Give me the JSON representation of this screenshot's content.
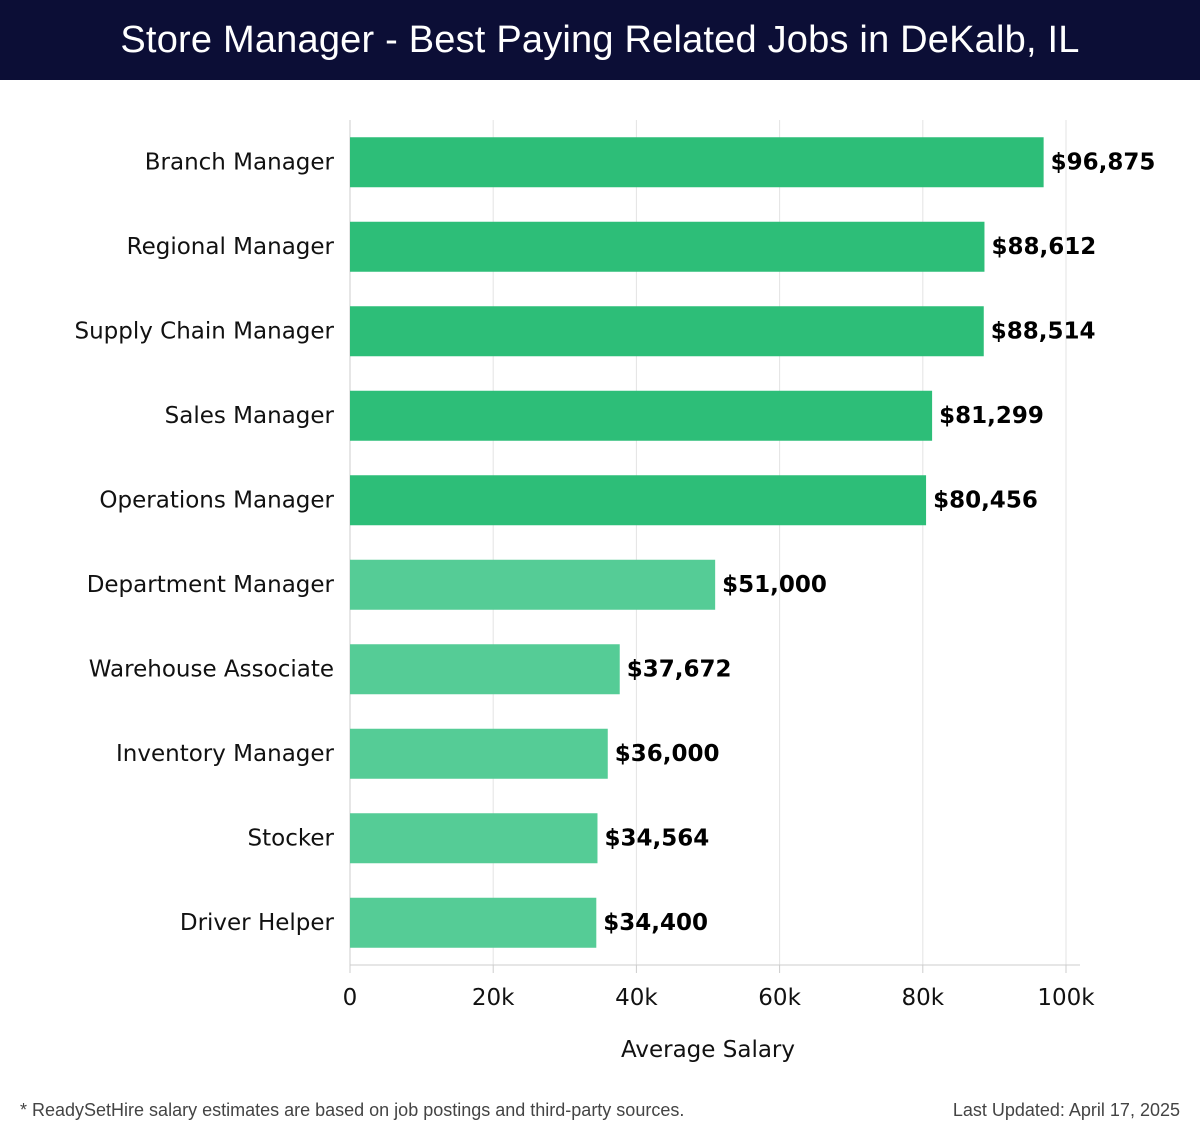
{
  "header": {
    "title": "Store Manager - Best Paying Related Jobs in DeKalb, IL"
  },
  "chart_data": {
    "type": "bar",
    "orientation": "horizontal",
    "categories": [
      "Branch Manager",
      "Regional Manager",
      "Supply Chain Manager",
      "Sales Manager",
      "Operations Manager",
      "Department Manager",
      "Warehouse Associate",
      "Inventory Manager",
      "Stocker",
      "Driver Helper"
    ],
    "values": [
      96875,
      88612,
      88514,
      81299,
      80456,
      51000,
      37672,
      36000,
      34564,
      34400
    ],
    "value_labels": [
      "$96,875",
      "$88,612",
      "$88,514",
      "$81,299",
      "$80,456",
      "$51,000",
      "$37,672",
      "$36,000",
      "$34,564",
      "$34,400"
    ],
    "xlabel": "Average Salary",
    "ylabel": "",
    "xlim": [
      0,
      100000
    ],
    "xticks": [
      0,
      20000,
      40000,
      60000,
      80000,
      100000
    ],
    "xtick_labels": [
      "0",
      "20k",
      "40k",
      "60k",
      "80k",
      "100k"
    ],
    "grid": "vertical",
    "colors": {
      "high": "#2dbe78",
      "low": "#55cc96",
      "grid": "#e3e3e3",
      "axis": "#cccccc",
      "label": "#111111",
      "value_label": "#000000"
    },
    "high_threshold": 80000
  },
  "footer": {
    "note": "* ReadySetHire salary estimates are based on job postings and third-party sources.",
    "updated": "Last Updated: April 17, 2025"
  }
}
